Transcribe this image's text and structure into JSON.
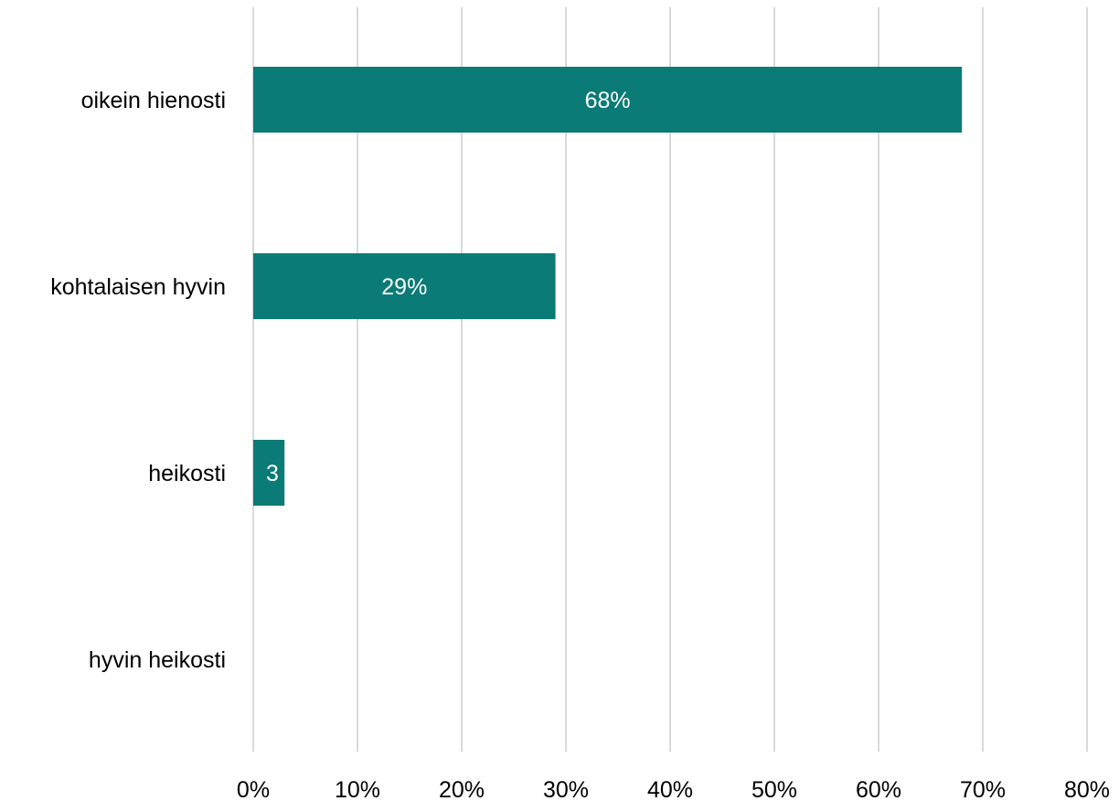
{
  "chart_data": {
    "type": "bar",
    "orientation": "horizontal",
    "categories": [
      "oikein hienosti",
      "kohtalaisen hyvin",
      "heikosti",
      "hyvin heikosti"
    ],
    "values": [
      68,
      29,
      3,
      0
    ],
    "data_labels": [
      "68%",
      "29%",
      "3",
      ""
    ],
    "xlim": [
      0,
      80
    ],
    "x_ticks": [
      0,
      10,
      20,
      30,
      40,
      50,
      60,
      70,
      80
    ],
    "x_tick_labels": [
      "0%",
      "10%",
      "20%",
      "30%",
      "40%",
      "50%",
      "60%",
      "70%",
      "80%"
    ],
    "grid": "vertical",
    "legend": "none",
    "colors": {
      "bar": "#0a7b76",
      "grid": "#d9d9d9",
      "data_label": "#ffffff",
      "text": "#000000"
    }
  }
}
